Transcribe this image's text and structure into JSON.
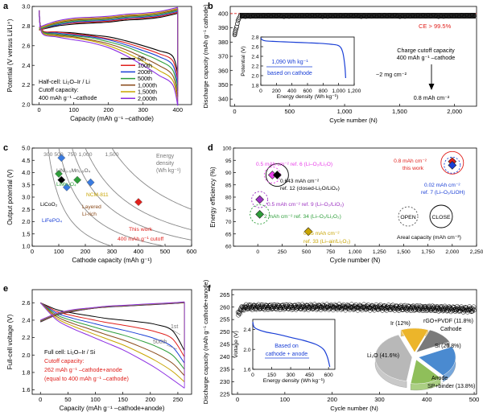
{
  "figure": {
    "panel_a": {
      "letter": "a",
      "chart_data": {
        "type": "line",
        "xlabel": "Capacity (mAh g⁻¹ –cathode)",
        "ylabel": "Potential (V versus Li/Li⁺)",
        "xlim": [
          -20,
          440
        ],
        "ylim": [
          2.0,
          3.0
        ],
        "xticks": [
          0,
          100,
          200,
          300,
          400
        ],
        "yticks": [
          2.0,
          2.2,
          2.4,
          2.6,
          2.8,
          3.0
        ],
        "annotations": [
          "Half-cell: Li₂O–Ir / Li",
          "Cutoff capacity:",
          "400 mAh g⁻¹ –cathode"
        ],
        "series": [
          {
            "name": "5th",
            "color": "#000000",
            "charge_y": [
              2.76,
              2.8,
              2.82,
              2.83,
              2.84,
              2.86,
              2.87,
              2.89,
              2.93
            ],
            "discharge_y": [
              2.96,
              2.76,
              2.74,
              2.73,
              2.71,
              2.69,
              2.65,
              2.55,
              2.32
            ]
          },
          {
            "name": "100th",
            "color": "#e0201c",
            "charge_y": [
              2.76,
              2.81,
              2.83,
              2.84,
              2.85,
              2.87,
              2.88,
              2.9,
              2.94
            ],
            "discharge_y": [
              2.96,
              2.76,
              2.74,
              2.72,
              2.7,
              2.67,
              2.63,
              2.52,
              2.26
            ]
          },
          {
            "name": "200th",
            "color": "#1a3fd6",
            "charge_y": [
              2.77,
              2.81,
              2.84,
              2.85,
              2.86,
              2.88,
              2.89,
              2.91,
              2.95
            ],
            "discharge_y": [
              2.96,
              2.75,
              2.73,
              2.71,
              2.69,
              2.66,
              2.61,
              2.49,
              2.2
            ]
          },
          {
            "name": "500th",
            "color": "#2e9e3a",
            "charge_y": [
              2.77,
              2.82,
              2.85,
              2.86,
              2.87,
              2.89,
              2.9,
              2.92,
              2.96
            ],
            "discharge_y": [
              2.96,
              2.75,
              2.72,
              2.7,
              2.68,
              2.64,
              2.59,
              2.45,
              2.14
            ]
          },
          {
            "name": "1,000th",
            "color": "#8a4a1a",
            "charge_y": [
              2.78,
              2.83,
              2.86,
              2.87,
              2.88,
              2.9,
              2.91,
              2.93,
              2.97
            ],
            "discharge_y": [
              2.96,
              2.74,
              2.71,
              2.69,
              2.66,
              2.62,
              2.56,
              2.4,
              2.08
            ]
          },
          {
            "name": "1,500th",
            "color": "#c8a400",
            "charge_y": [
              2.78,
              2.84,
              2.87,
              2.88,
              2.89,
              2.91,
              2.92,
              2.94,
              2.98
            ],
            "discharge_y": [
              2.96,
              2.74,
              2.7,
              2.68,
              2.65,
              2.6,
              2.53,
              2.35,
              2.03
            ]
          },
          {
            "name": "2,000th",
            "color": "#8a2be2",
            "charge_y": [
              2.79,
              2.85,
              2.88,
              2.89,
              2.9,
              2.92,
              2.93,
              2.95,
              2.99
            ],
            "discharge_y": [
              2.96,
              2.73,
              2.69,
              2.66,
              2.63,
              2.58,
              2.5,
              2.3,
              1.99
            ]
          }
        ],
        "x": [
          0,
          50,
          100,
          150,
          200,
          250,
          300,
          350,
          400
        ]
      }
    },
    "panel_b": {
      "letter": "b",
      "chart_data": {
        "type": "scatter",
        "xlabel": "Cycle number (N)",
        "ylabel": "Discharge capacity (mAh g⁻¹ cathode)",
        "xlim": [
          -40,
          2200
        ],
        "ylim": [
          335,
          405
        ],
        "xticks": [
          0,
          500,
          1000,
          1500,
          2000
        ],
        "xticklabels": [
          "0",
          "500",
          "1,000",
          "1,500",
          "2,000"
        ],
        "yticks": [
          340,
          350,
          360,
          370,
          380,
          390,
          400
        ],
        "reference_line": 400,
        "early_cycles": {
          "x": [
            1,
            3,
            5,
            8,
            12,
            16,
            20,
            25,
            30,
            36,
            42,
            50
          ],
          "y": [
            385,
            386,
            387,
            388,
            389,
            390,
            391,
            393,
            395,
            396,
            397,
            398
          ]
        },
        "plateau": {
          "x_start": 50,
          "x_end": 2190,
          "y": 398.5
        },
        "annotations": [
          "CE > 99.5%",
          "Charge cutoff capacity",
          "400 mAh g⁻¹ –cathode",
          "~2 mg cm⁻²",
          "0.8 mAh cm⁻²"
        ],
        "inset": {
          "type": "line",
          "xlabel": "Energy density (Wh kg⁻¹)",
          "ylabel": "Potential (V)",
          "xlim": [
            0,
            1200
          ],
          "ylim": [
            1.8,
            2.8
          ],
          "xticks": [
            0,
            200,
            400,
            600,
            800,
            1000,
            1200
          ],
          "xticklabels": [
            "0",
            "200",
            "400",
            "600",
            "800",
            "1,000",
            "1,200"
          ],
          "yticks": [
            1.8,
            2.0,
            2.2,
            2.4,
            2.6,
            2.8
          ],
          "x": [
            0,
            20,
            60,
            150,
            300,
            450,
            600,
            750,
            900,
            1000,
            1050,
            1080,
            1090
          ],
          "y": [
            2.78,
            2.74,
            2.72,
            2.71,
            2.7,
            2.69,
            2.68,
            2.67,
            2.65,
            2.62,
            2.5,
            2.2,
            1.95
          ],
          "annotations": [
            "1,090 Wh kg⁻¹",
            "based on cathode"
          ]
        }
      }
    },
    "panel_c": {
      "letter": "c",
      "chart_data": {
        "type": "scatter",
        "xlabel": "Cathode capacity (mAh g⁻¹)",
        "ylabel": "Output potential (V)",
        "xlim": [
          0,
          600
        ],
        "ylim": [
          1.0,
          5.0
        ],
        "xticks": [
          0,
          100,
          200,
          300,
          400,
          500,
          600
        ],
        "yticks": [
          1.0,
          1.5,
          2.0,
          2.5,
          3.0,
          3.5,
          4.0,
          4.5,
          5.0
        ],
        "energy_contours": [
          300,
          500,
          750,
          1000,
          1500
        ],
        "energy_contour_labels": [
          "300",
          "500",
          "750",
          "1,000",
          "1,500"
        ],
        "energy_label": [
          "Energy",
          "density",
          "(Wh kg⁻¹)"
        ],
        "points": [
          {
            "label": "LiNi₀.₅Mn₁.₅O₄",
            "x": 110,
            "y": 4.6,
            "color": "#3a7be0"
          },
          {
            "label": "LiMn₂O₄",
            "x": 100,
            "y": 3.95,
            "color": "#2e9e3a"
          },
          {
            "label": "NCM-811",
            "x": 170,
            "y": 3.7,
            "color": "#2e9e3a"
          },
          {
            "label": "LiCoO₂",
            "x": 110,
            "y": 3.7,
            "color": "#000000"
          },
          {
            "label": "LiFePO₄",
            "x": 130,
            "y": 3.4,
            "color": "#3a7be0"
          },
          {
            "label": "Layered Li-rich",
            "x": 220,
            "y": 3.6,
            "color": "#3a7be0"
          },
          {
            "label": "This work",
            "x": 400,
            "y": 2.8,
            "color": "#e0201c"
          }
        ],
        "annotations": [
          "400 mAh g⁻¹ cutoff"
        ]
      }
    },
    "panel_d": {
      "letter": "d",
      "chart_data": {
        "type": "scatter",
        "xlabel": "Cycle number (N)",
        "ylabel": "Energy efficiency (%)",
        "xlim": [
          -250,
          2250
        ],
        "ylim": [
          60,
          100
        ],
        "xticks": [
          0,
          250,
          500,
          750,
          1000,
          1250,
          1500,
          1750,
          2000,
          2250
        ],
        "xticklabels": [
          "0",
          "250",
          "500",
          "750",
          "1,000",
          "1,250",
          "1,500",
          "1,750",
          "2,000",
          "2,250"
        ],
        "yticks": [
          60,
          65,
          70,
          75,
          80,
          85,
          90,
          95,
          100
        ],
        "points": [
          {
            "label": "0.5 mAh cm⁻² ref. 6 (Li–O₂/Li₂O)",
            "x": 150,
            "y": 89,
            "color": "#e83ee8"
          },
          {
            "label": "0.643 mAh cm⁻² ref. 12 (closed-Li₂O/LiO₄)",
            "x": 200,
            "y": 89,
            "color": "#000000"
          },
          {
            "label": "0.5 mAh cm⁻² ref. 9 (Li–O₂/LiO₂)",
            "x": 20,
            "y": 79,
            "color": "#9b30c0"
          },
          {
            "label": "2 mAh cm⁻² ref. 34 (Li–O₂/Li₂O₂)",
            "x": 20,
            "y": 73,
            "color": "#2e9e3a"
          },
          {
            "label": "0.05 mAh cm⁻² ref. 33 (Li–air/Li₂O₂)",
            "x": 520,
            "y": 66,
            "color": "#c8a400"
          },
          {
            "label": "0.8 mAh cm⁻² this work",
            "x": 2000,
            "y": 94.5,
            "color": "#e0201c"
          },
          {
            "label": "0.02 mAh cm⁻² ref. 7 (Li–O₂/LiOH)",
            "x": 2000,
            "y": 93,
            "color": "#1a3fd6"
          }
        ],
        "legend": {
          "open": "OPEN",
          "close": "CLOSE",
          "title": "Areal capacity (mAh cm⁻²)"
        }
      }
    },
    "panel_e": {
      "letter": "e",
      "chart_data": {
        "type": "line",
        "xlabel": "Capacity (mAh g⁻¹ –cathode+anode)",
        "ylabel": "Full-cell voltage (V)",
        "xlim": [
          -15,
          275
        ],
        "ylim": [
          1.55,
          2.75
        ],
        "xticks": [
          0,
          50,
          100,
          150,
          200,
          250
        ],
        "yticks": [
          1.6,
          1.8,
          2.0,
          2.2,
          2.4,
          2.6
        ],
        "x": [
          0,
          30,
          60,
          90,
          120,
          150,
          180,
          210,
          240,
          262
        ],
        "charge_first": [
          2.38,
          2.46,
          2.5,
          2.53,
          2.55,
          2.56,
          2.57,
          2.58,
          2.59,
          2.6
        ],
        "charge_last": [
          2.4,
          2.48,
          2.52,
          2.54,
          2.56,
          2.57,
          2.58,
          2.59,
          2.6,
          2.61
        ],
        "discharge_first": [
          2.6,
          2.52,
          2.48,
          2.45,
          2.42,
          2.4,
          2.38,
          2.35,
          2.28,
          2.05
        ],
        "discharge_last": [
          2.6,
          2.4,
          2.3,
          2.22,
          2.14,
          2.06,
          1.96,
          1.85,
          1.72,
          1.62
        ],
        "curve_labels": [
          "1st",
          "500th"
        ],
        "annotations": [
          "Full cell: Li₂O–Ir / Si",
          "Cutoff capacity:",
          "262 mAh g⁻¹ –cathode+anode",
          "(equal to 400 mAh g⁻¹ –cathode)"
        ]
      }
    },
    "panel_f": {
      "letter": "f",
      "chart_data": {
        "type": "scatter",
        "xlabel": "Cycle number (N)",
        "ylabel": "Discharge capacity (mAh g⁻¹ cathode+anode)",
        "xlim": [
          -12,
          505
        ],
        "ylim": [
          225,
          267
        ],
        "xticks": [
          0,
          100,
          200,
          300,
          400,
          500
        ],
        "yticks": [
          225,
          230,
          235,
          240,
          245,
          250,
          255,
          260,
          265
        ],
        "trend": {
          "x": [
            1,
            5,
            10,
            20,
            50,
            100,
            200,
            300,
            400,
            500
          ],
          "y": [
            257,
            258.5,
            259.5,
            260,
            260,
            260,
            260,
            259.8,
            259.5,
            259
          ]
        },
        "inset": {
          "type": "line",
          "xlabel": "Energy density (Wh kg⁻¹)",
          "ylabel": "Voltage (V)",
          "xlim": [
            0,
            650
          ],
          "ylim": [
            1.6,
            2.6
          ],
          "xticks": [
            0,
            150,
            300,
            450,
            600
          ],
          "yticks": [
            1.6,
            2.0,
            2.4
          ],
          "x": [
            0,
            10,
            40,
            100,
            200,
            300,
            400,
            500,
            560,
            590,
            610
          ],
          "y": [
            2.55,
            2.45,
            2.4,
            2.35,
            2.3,
            2.24,
            2.18,
            2.1,
            2.0,
            1.85,
            1.65
          ],
          "annotations": [
            "Based on",
            "cathode + anode"
          ]
        },
        "pie": {
          "slices": [
            {
              "label": "Ir (12%)",
              "value": 12,
              "color": "#ecb52a"
            },
            {
              "label": "rGO+PVDF (11.8%)",
              "value": 11.8,
              "color": "#7a7a7a"
            },
            {
              "label": "Si (20.8%)",
              "value": 20.8,
              "color": "#4a8ad0"
            },
            {
              "label": "SP+binder (13.8%)",
              "value": 13.8,
              "color": "#8fbf5a"
            },
            {
              "label": "Li₂O (41.6%)",
              "value": 41.6,
              "color": "#b8b8b8"
            }
          ],
          "group_labels": [
            "Cathode",
            "Anode"
          ]
        }
      }
    }
  }
}
